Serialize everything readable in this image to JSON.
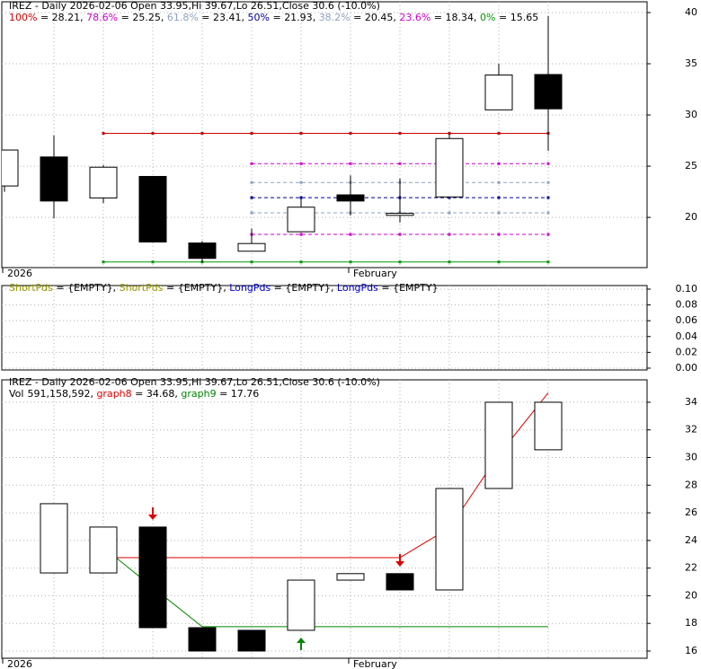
{
  "chart_data": [
    {
      "type": "candlestick",
      "title": "IREZ - Daily 2026-02-06 Open 33.95,Hi 39.67,Lo 26.51,Close 30.6 (-10.0%)",
      "categories": [
        "2026",
        null,
        null,
        null,
        null,
        null,
        null,
        "February",
        null,
        null,
        null,
        null
      ],
      "open": [
        23.07,
        25.9,
        21.9,
        24.0,
        17.5,
        16.7,
        18.6,
        22.2,
        20.2,
        22.0,
        30.5,
        33.95
      ],
      "high": [
        26.6,
        28.0,
        25.1,
        24.0,
        17.7,
        18.9,
        21.8,
        24.1,
        23.8,
        28.2,
        35.0,
        39.67
      ],
      "low": [
        22.5,
        19.9,
        21.4,
        17.6,
        15.6,
        16.7,
        18.6,
        20.2,
        19.5,
        22.0,
        30.5,
        26.51
      ],
      "close": [
        26.58,
        21.6,
        24.9,
        17.6,
        16.0,
        17.45,
        21.0,
        21.6,
        20.4,
        27.7,
        33.9,
        30.6
      ],
      "fib_levels": [
        {
          "label": "100%",
          "value": 28.21,
          "color": "#cc0000"
        },
        {
          "label": "78.6%",
          "value": 25.25,
          "color": "#cc00cc"
        },
        {
          "label": "61.8%",
          "value": 23.41,
          "color": "#8fa3c0"
        },
        {
          "label": "50%",
          "value": 21.93,
          "color": "#000099"
        },
        {
          "label": "38.2%",
          "value": 20.45,
          "color": "#8fa3c0"
        },
        {
          "label": "23.6%",
          "value": 18.34,
          "color": "#cc00cc"
        },
        {
          "label": "0%",
          "value": 15.65,
          "color": "#009900"
        }
      ],
      "ylim": [
        15.1,
        41.05
      ],
      "yticks": [
        20,
        25,
        30,
        35,
        40
      ],
      "grid": true
    },
    {
      "type": "empty",
      "legend": [
        {
          "name": "ShortPds",
          "color": "#999900",
          "value": "{EMPTY}"
        },
        {
          "name": "ShortPds",
          "color": "#999900",
          "value": "{EMPTY}"
        },
        {
          "name": "LongPds",
          "color": "#0000cc",
          "value": "{EMPTY}"
        },
        {
          "name": "LongPds",
          "color": "#0000cc",
          "value": "{EMPTY}"
        }
      ],
      "ylim": [
        -0.0023,
        0.1045
      ],
      "yticks": [
        {
          "value": 0,
          "label": "0.00"
        },
        {
          "value": 0.02,
          "label": "0.02"
        },
        {
          "value": 0.04,
          "label": "0.04"
        },
        {
          "value": 0.06,
          "label": "0.06"
        },
        {
          "value": 0.08,
          "label": "0.08"
        },
        {
          "value": 0.1,
          "label": "0.10"
        }
      ],
      "grid": true
    },
    {
      "type": "candlestick",
      "title": "IREZ - Daily 2026-02-06 Open 33.95,Hi 39.67,Lo 26.51,Close 30.6 (-10.0%)",
      "categories": [
        "2026",
        null,
        null,
        null,
        null,
        null,
        null,
        "February",
        null,
        null,
        null,
        null
      ],
      "volume_name": "Vol",
      "volume": {
        "value": 591158592,
        "label": "591,158,592"
      },
      "open": [
        null,
        21.65,
        21.65,
        24.97,
        17.69,
        17.5,
        17.5,
        21.13,
        21.6,
        20.42,
        27.76,
        30.56
      ],
      "close": [
        null,
        26.66,
        24.97,
        17.69,
        16.0,
        16.0,
        21.13,
        21.6,
        20.42,
        27.76,
        34.0,
        34.0
      ],
      "series": [
        {
          "name": "graph8",
          "color": "#dd0000",
          "values": [
            null,
            null,
            22.76,
            22.76,
            22.76,
            22.76,
            22.76,
            22.76,
            22.76,
            24.9,
            30.2,
            34.68
          ]
        },
        {
          "name": "graph9",
          "color": "#008800",
          "values": [
            null,
            null,
            23.5,
            20.6,
            17.76,
            17.76,
            17.76,
            17.76,
            17.76,
            17.76,
            17.76,
            17.76
          ]
        }
      ],
      "ylim": [
        15.48,
        35.62
      ],
      "yticks": [
        16,
        18,
        20,
        22,
        24,
        26,
        28,
        30,
        32,
        34
      ],
      "grid": true
    }
  ]
}
